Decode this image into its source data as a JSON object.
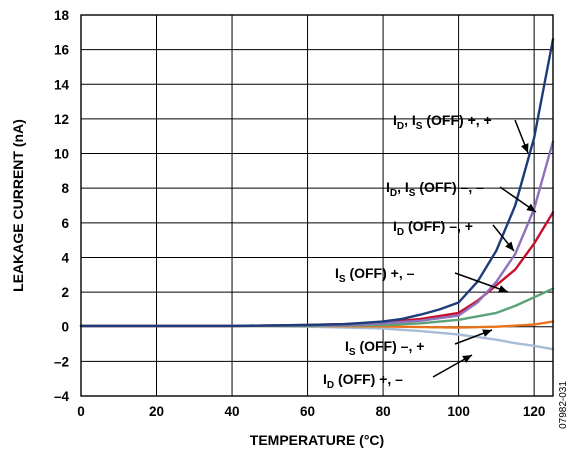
{
  "figure_id": "07982-031",
  "chart_data": {
    "type": "line",
    "xlabel": "TEMPERATURE (°C)",
    "ylabel": "LEAKAGE CURRENT (nA)",
    "xlim": [
      0,
      125
    ],
    "ylim": [
      -4,
      18
    ],
    "xticks": [
      0,
      20,
      40,
      60,
      80,
      100,
      120
    ],
    "yticks": [
      -4,
      -2,
      0,
      2,
      4,
      6,
      8,
      10,
      12,
      14,
      16,
      18
    ],
    "ytick_labels": [
      "–4",
      "–2",
      "0",
      "2",
      "4",
      "6",
      "8",
      "10",
      "12",
      "14",
      "16",
      "18"
    ],
    "grid": true,
    "series": [
      {
        "name": "ID, IS (OFF) +, +",
        "label": {
          "parts": [
            "I",
            "D",
            ", I",
            "S",
            " (OFF) +, +"
          ]
        },
        "color": "#1f3c7a",
        "x": [
          0,
          20,
          40,
          60,
          70,
          80,
          85,
          90,
          95,
          100,
          105,
          110,
          115,
          120,
          125
        ],
        "y": [
          0.05,
          0.05,
          0.05,
          0.1,
          0.15,
          0.3,
          0.45,
          0.7,
          1.0,
          1.4,
          2.6,
          4.4,
          7.0,
          10.9,
          16.6
        ]
      },
      {
        "name": "ID, IS (OFF) –, –",
        "label": {
          "parts": [
            "I",
            "D",
            ", I",
            "S",
            " (OFF) –, –"
          ]
        },
        "color": "#8e72bb",
        "x": [
          0,
          20,
          40,
          60,
          70,
          80,
          90,
          100,
          105,
          110,
          115,
          120,
          125
        ],
        "y": [
          0.05,
          0.05,
          0.05,
          0.08,
          0.1,
          0.2,
          0.35,
          0.65,
          1.4,
          2.6,
          4.2,
          6.8,
          10.7
        ]
      },
      {
        "name": "ID (OFF) –, +",
        "label": {
          "parts": [
            "I",
            "D",
            " (OFF) –, +"
          ]
        },
        "color": "#c8102e",
        "x": [
          0,
          20,
          40,
          60,
          70,
          80,
          90,
          100,
          105,
          110,
          115,
          120,
          125
        ],
        "y": [
          0.05,
          0.05,
          0.05,
          0.1,
          0.15,
          0.25,
          0.45,
          0.8,
          1.5,
          2.4,
          3.3,
          4.8,
          6.6
        ]
      },
      {
        "name": "IS (OFF) +, –",
        "label": {
          "parts": [
            "I",
            "S",
            " (OFF) +, –"
          ]
        },
        "color": "#5aa37a",
        "x": [
          0,
          20,
          40,
          60,
          80,
          90,
          100,
          110,
          115,
          120,
          125
        ],
        "y": [
          0.05,
          0.05,
          0.05,
          0.05,
          0.1,
          0.2,
          0.4,
          0.8,
          1.2,
          1.7,
          2.2
        ]
      },
      {
        "name": "IS (OFF) –, +",
        "label": {
          "parts": [
            "I",
            "S",
            " (OFF) –, +"
          ]
        },
        "color": "#e8731a",
        "x": [
          0,
          20,
          40,
          60,
          80,
          90,
          100,
          110,
          120,
          125
        ],
        "y": [
          0.05,
          0.05,
          0.05,
          0.05,
          0.02,
          -0.02,
          -0.05,
          0.0,
          0.12,
          0.3
        ]
      },
      {
        "name": "ID (OFF) +, –",
        "label": {
          "parts": [
            "I",
            "D",
            " (OFF) +, –"
          ]
        },
        "color": "#a9bcd5",
        "x": [
          0,
          20,
          40,
          60,
          80,
          90,
          100,
          105,
          110,
          115,
          120,
          125
        ],
        "y": [
          0.05,
          0.05,
          0.05,
          0.0,
          -0.1,
          -0.25,
          -0.45,
          -0.6,
          -0.75,
          -0.95,
          -1.1,
          -1.3
        ]
      }
    ]
  }
}
